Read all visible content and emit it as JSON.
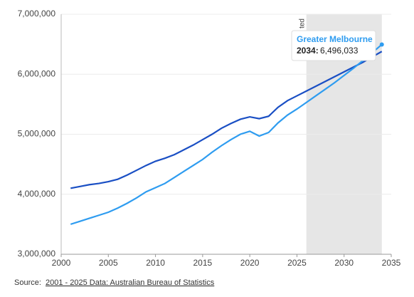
{
  "chart_data": {
    "type": "line",
    "x": [
      2001,
      2002,
      2003,
      2004,
      2005,
      2006,
      2007,
      2008,
      2009,
      2010,
      2011,
      2012,
      2013,
      2014,
      2015,
      2016,
      2017,
      2018,
      2019,
      2020,
      2021,
      2022,
      2023,
      2024,
      2025,
      2026,
      2027,
      2028,
      2029,
      2030,
      2031,
      2032,
      2033,
      2034
    ],
    "series": [
      {
        "color": "#1a4fc4",
        "values": [
          4100000,
          4130000,
          4160000,
          4180000,
          4210000,
          4250000,
          4320000,
          4400000,
          4480000,
          4550000,
          4600000,
          4660000,
          4740000,
          4820000,
          4910000,
          5000000,
          5100000,
          5180000,
          5250000,
          5290000,
          5260000,
          5300000,
          5450000,
          5560000,
          5640000,
          5720000,
          5800000,
          5880000,
          5960000,
          6040000,
          6120000,
          6200000,
          6290000,
          6380000
        ]
      },
      {
        "name": "Greater Melbourne",
        "color": "#2e9cf0",
        "values": [
          3500000,
          3550000,
          3600000,
          3650000,
          3700000,
          3770000,
          3850000,
          3940000,
          4040000,
          4110000,
          4180000,
          4280000,
          4380000,
          4480000,
          4580000,
          4700000,
          4810000,
          4910000,
          5000000,
          5050000,
          4970000,
          5030000,
          5190000,
          5320000,
          5420000,
          5530000,
          5640000,
          5750000,
          5860000,
          5980000,
          6100000,
          6230000,
          6360000,
          6496033
        ],
        "value_labels": [
          null,
          null,
          null,
          null,
          null,
          null,
          null,
          null,
          null,
          null,
          null,
          null,
          null,
          null,
          null,
          null,
          null,
          null,
          null,
          null,
          null,
          null,
          null,
          null,
          null,
          null,
          null,
          null,
          null,
          null,
          null,
          null,
          null,
          "6,496,033"
        ]
      }
    ],
    "xlim": [
      2000,
      2035
    ],
    "xticks": [
      2000,
      2005,
      2010,
      2015,
      2020,
      2025,
      2030,
      2035
    ],
    "ylim": [
      3000000,
      7000000
    ],
    "yticks": [
      {
        "value": 3000000,
        "label": "3,000,000"
      },
      {
        "value": 4000000,
        "label": "4,000,000"
      },
      {
        "value": 5000000,
        "label": "5,000,000"
      },
      {
        "value": 6000000,
        "label": "6,000,000"
      },
      {
        "value": 7000000,
        "label": "7,000,000"
      }
    ],
    "grid": true,
    "shaded_range": [
      2026,
      2034
    ],
    "shaded_label": "ted",
    "tooltip": {
      "label": "2034:"
    },
    "source": {
      "prefix": "Source:",
      "link": "2001 - 2025 Data: Australian Bureau of Statistics"
    }
  }
}
